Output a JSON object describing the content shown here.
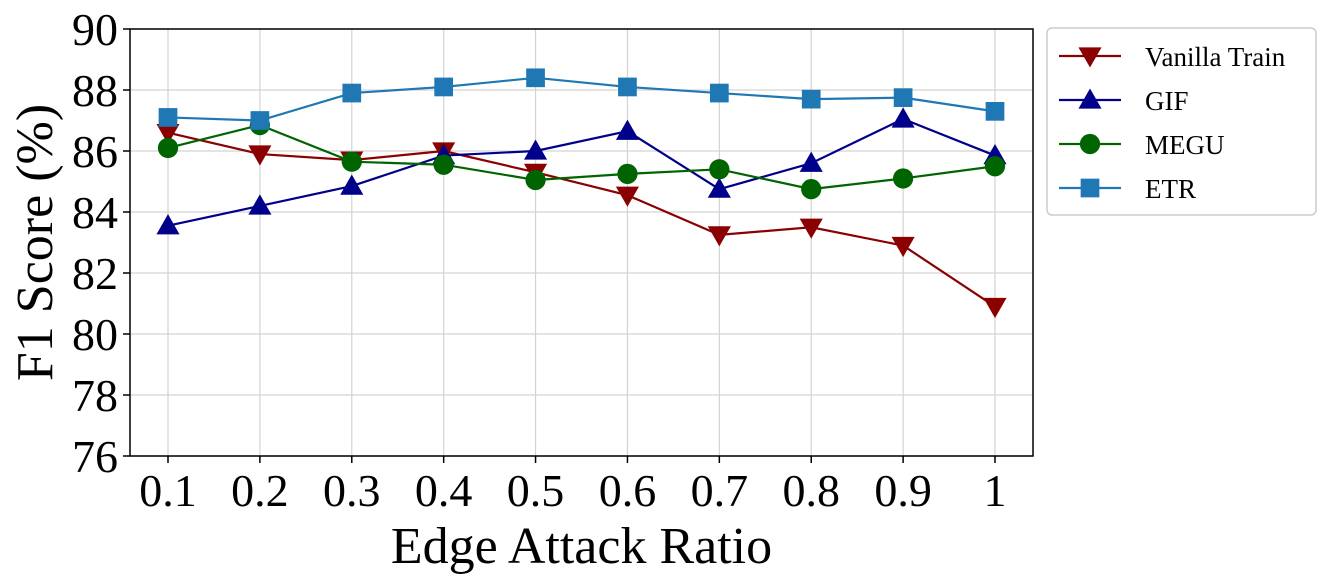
{
  "chart_data": {
    "type": "line",
    "title": "",
    "xlabel": "Edge Attack Ratio",
    "ylabel": "F1 Score (%)",
    "x": [
      0.1,
      0.2,
      0.3,
      0.4,
      0.5,
      0.6,
      0.7,
      0.8,
      0.9,
      1
    ],
    "x_tick_labels": [
      "0.1",
      "0.2",
      "0.3",
      "0.4",
      "0.5",
      "0.6",
      "0.7",
      "0.8",
      "0.9",
      "1"
    ],
    "ylim": [
      76,
      90
    ],
    "y_ticks": [
      76,
      78,
      80,
      82,
      84,
      86,
      88,
      90
    ],
    "grid": true,
    "legend_position": "outside-right-top",
    "series": [
      {
        "name": "Vanilla Train",
        "color": "#8b0000",
        "marker": "triangle-down",
        "values": [
          86.6,
          85.9,
          85.7,
          86.0,
          85.3,
          84.55,
          83.25,
          83.5,
          82.9,
          80.9
        ]
      },
      {
        "name": "GIF",
        "color": "#00008b",
        "marker": "triangle-up",
        "values": [
          83.55,
          84.2,
          84.85,
          85.85,
          86.0,
          86.65,
          84.75,
          85.6,
          87.05,
          85.85
        ]
      },
      {
        "name": "MEGU",
        "color": "#006400",
        "marker": "circle",
        "values": [
          86.1,
          86.85,
          85.65,
          85.55,
          85.05,
          85.25,
          85.4,
          84.75,
          85.1,
          85.5
        ]
      },
      {
        "name": "ETR",
        "color": "#1f77b4",
        "marker": "square",
        "values": [
          87.1,
          87.0,
          87.9,
          88.1,
          88.4,
          88.1,
          87.9,
          87.7,
          87.75,
          87.3
        ]
      }
    ]
  }
}
